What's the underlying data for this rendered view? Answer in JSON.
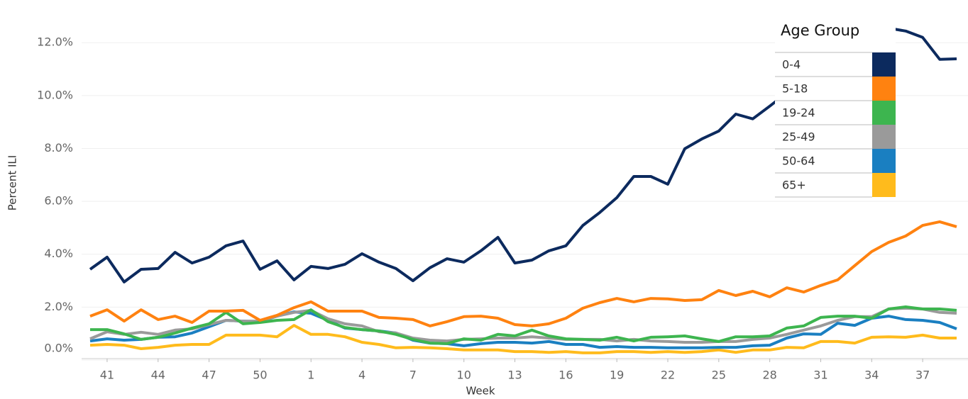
{
  "chart_data": {
    "type": "line",
    "x_label": "Week",
    "y_label": "Percent ILI",
    "categories": [
      null,
      41,
      null,
      null,
      44,
      null,
      null,
      47,
      null,
      null,
      50,
      null,
      null,
      1,
      null,
      null,
      4,
      null,
      null,
      7,
      null,
      null,
      10,
      null,
      null,
      13,
      null,
      null,
      16,
      null,
      null,
      19,
      null,
      null,
      22,
      null,
      null,
      25,
      null,
      null,
      28,
      null,
      null,
      31,
      null,
      null,
      34,
      null,
      null,
      37,
      null,
      null
    ],
    "ylim": [
      0,
      13.4
    ],
    "yticks": [
      {
        "value": 0,
        "label": "0.0%"
      },
      {
        "value": 2,
        "label": "2.0%"
      },
      {
        "value": 4,
        "label": "4.0%"
      },
      {
        "value": 6,
        "label": "6.0%"
      },
      {
        "value": 8,
        "label": "8.0%"
      },
      {
        "value": 10,
        "label": "10.0%"
      },
      {
        "value": 12,
        "label": "12.0%"
      }
    ],
    "grid": true,
    "legend_title": "Age Group",
    "legend": "top-right",
    "series": [
      {
        "name": "0-4",
        "color": "#0c2a5e",
        "values": [
          3.43,
          3.89,
          2.95,
          3.43,
          3.46,
          4.07,
          3.67,
          3.89,
          4.32,
          4.5,
          3.43,
          3.75,
          3.03,
          3.54,
          3.46,
          3.62,
          4.02,
          3.7,
          3.46,
          3.0,
          3.49,
          3.83,
          3.7,
          4.13,
          4.64,
          3.67,
          3.78,
          4.13,
          4.32,
          5.09,
          5.58,
          6.14,
          6.94,
          6.94,
          6.65,
          7.99,
          8.36,
          8.66,
          9.3,
          9.12,
          9.6,
          10.1,
          10.6,
          11.1,
          11.5,
          11.8,
          12.6,
          12.55,
          12.44,
          12.2,
          11.37,
          11.39
        ]
      },
      {
        "name": "5-18",
        "color": "#ff8210",
        "values": [
          1.66,
          1.9,
          1.47,
          1.9,
          1.53,
          1.66,
          1.42,
          1.85,
          1.85,
          1.88,
          1.5,
          1.69,
          1.98,
          2.2,
          1.85,
          1.85,
          1.85,
          1.61,
          1.58,
          1.53,
          1.29,
          1.45,
          1.64,
          1.66,
          1.58,
          1.34,
          1.29,
          1.37,
          1.58,
          1.96,
          2.17,
          2.33,
          2.2,
          2.33,
          2.31,
          2.25,
          2.28,
          2.63,
          2.44,
          2.6,
          2.39,
          2.73,
          2.57,
          2.82,
          3.03,
          3.57,
          4.1,
          4.45,
          4.69,
          5.09,
          5.23,
          5.04
        ]
      },
      {
        "name": "19-24",
        "color": "#3db54f",
        "values": [
          1.15,
          1.15,
          0.99,
          0.78,
          0.86,
          1.02,
          1.21,
          1.37,
          1.8,
          1.37,
          1.42,
          1.5,
          1.53,
          1.9,
          1.45,
          1.23,
          1.15,
          1.1,
          0.97,
          0.78,
          0.64,
          0.62,
          0.8,
          0.75,
          0.97,
          0.91,
          1.13,
          0.91,
          0.8,
          0.78,
          0.75,
          0.86,
          0.72,
          0.86,
          0.88,
          0.91,
          0.8,
          0.7,
          0.88,
          0.88,
          0.91,
          1.21,
          1.29,
          1.61,
          1.66,
          1.66,
          1.58,
          1.93,
          2.01,
          1.93,
          1.93,
          1.88
        ]
      },
      {
        "name": "25-49",
        "color": "#9a9a9a",
        "values": [
          0.8,
          1.07,
          0.97,
          1.05,
          0.97,
          1.13,
          1.18,
          1.34,
          1.5,
          1.47,
          1.47,
          1.66,
          1.8,
          1.88,
          1.56,
          1.37,
          1.29,
          1.07,
          1.02,
          0.83,
          0.75,
          0.72,
          0.78,
          0.8,
          0.83,
          0.83,
          0.88,
          0.83,
          0.78,
          0.78,
          0.78,
          0.72,
          0.78,
          0.72,
          0.7,
          0.67,
          0.67,
          0.7,
          0.7,
          0.78,
          0.83,
          0.97,
          1.13,
          1.29,
          1.5,
          1.64,
          1.64,
          1.93,
          1.96,
          1.93,
          1.8,
          1.77
        ]
      },
      {
        "name": "50-64",
        "color": "#1a7fc1",
        "values": [
          0.72,
          0.8,
          0.75,
          0.78,
          0.86,
          0.88,
          1.02,
          1.26,
          1.5,
          1.47,
          1.45,
          1.66,
          1.82,
          1.77,
          1.5,
          1.21,
          1.15,
          1.1,
          1.02,
          0.75,
          0.64,
          0.62,
          0.54,
          0.62,
          0.67,
          0.67,
          0.64,
          0.7,
          0.59,
          0.59,
          0.48,
          0.51,
          0.48,
          0.48,
          0.46,
          0.46,
          0.46,
          0.48,
          0.48,
          0.54,
          0.56,
          0.83,
          0.99,
          0.97,
          1.39,
          1.31,
          1.58,
          1.66,
          1.53,
          1.5,
          1.42,
          1.18
        ]
      },
      {
        "name": "65+",
        "color": "#ffbb1c",
        "values": [
          0.56,
          0.59,
          0.56,
          0.43,
          0.48,
          0.56,
          0.59,
          0.59,
          0.94,
          0.94,
          0.94,
          0.88,
          1.31,
          0.97,
          0.97,
          0.88,
          0.67,
          0.59,
          0.46,
          0.48,
          0.46,
          0.43,
          0.38,
          0.38,
          0.38,
          0.32,
          0.32,
          0.29,
          0.32,
          0.27,
          0.27,
          0.32,
          0.32,
          0.29,
          0.32,
          0.29,
          0.32,
          0.38,
          0.29,
          0.38,
          0.38,
          0.48,
          0.46,
          0.7,
          0.7,
          0.64,
          0.86,
          0.88,
          0.86,
          0.94,
          0.83,
          0.83
        ]
      }
    ]
  }
}
